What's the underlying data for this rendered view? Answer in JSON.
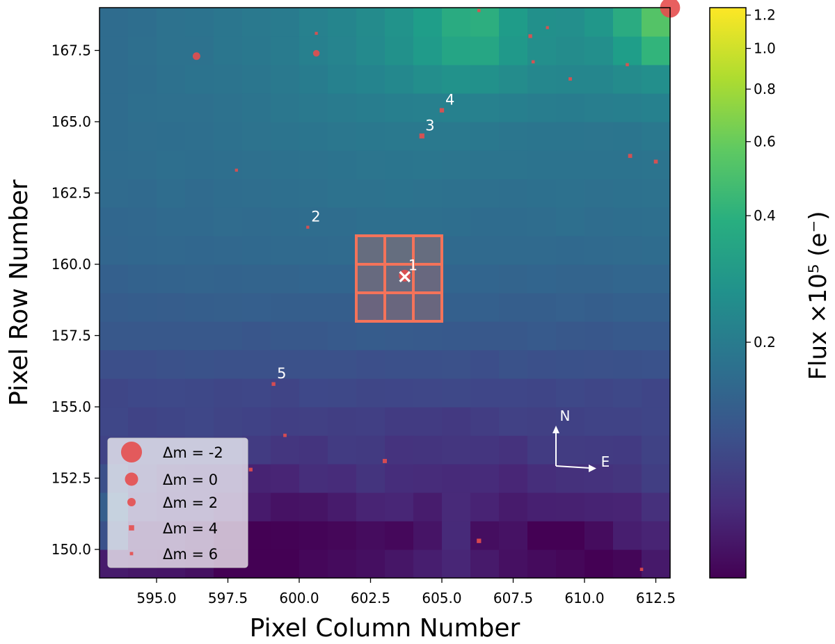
{
  "chart_data": {
    "type": "heatmap",
    "xlabel": "Pixel Column Number",
    "ylabel": "Pixel Row Number",
    "xlim": [
      593.0,
      613.0
    ],
    "ylim": [
      149.0,
      169.0
    ],
    "xticks": [
      595.0,
      597.5,
      600.0,
      602.5,
      605.0,
      607.5,
      610.0,
      612.5
    ],
    "xtick_labels": [
      "595.0",
      "597.5",
      "600.0",
      "602.5",
      "605.0",
      "607.5",
      "610.0",
      "612.5"
    ],
    "yticks": [
      150.0,
      152.5,
      155.0,
      157.5,
      160.0,
      162.5,
      165.0,
      167.5
    ],
    "ytick_labels": [
      "150.0",
      "152.5",
      "155.0",
      "157.5",
      "160.0",
      "162.5",
      "165.0",
      "167.5"
    ],
    "colormap": "viridis",
    "colorbar": {
      "label": "Flux ×10⁵ (e⁻)",
      "scale": "log",
      "range": [
        0.055,
        1.25
      ],
      "ticks": [
        0.2,
        0.4,
        0.6,
        0.8,
        1.0,
        1.2
      ],
      "tick_labels": [
        "0.2",
        "0.4",
        "0.6",
        "0.8",
        "1.0",
        "1.2"
      ]
    },
    "pixel_values": [
      [
        0.0693,
        0.0667,
        0.066,
        0.0626,
        0.0536,
        0.045,
        0.0477,
        0.0581,
        0.0602,
        0.0623,
        0.0661,
        0.0714,
        0.0765,
        0.0688,
        0.0628,
        0.0602,
        0.0578,
        0.0546,
        0.0574,
        0.0678
      ],
      [
        0.1211,
        0.0695,
        0.0699,
        0.0648,
        0.0566,
        0.0535,
        0.0553,
        0.0566,
        0.0579,
        0.0605,
        0.0587,
        0.0652,
        0.0797,
        0.0617,
        0.0639,
        0.0469,
        0.0505,
        0.0605,
        0.0711,
        0.075
      ],
      [
        0.1414,
        0.0887,
        0.0826,
        0.0814,
        0.0746,
        0.069,
        0.064,
        0.0651,
        0.0693,
        0.0748,
        0.0764,
        0.07,
        0.0791,
        0.0746,
        0.0693,
        0.0724,
        0.0728,
        0.0745,
        0.0752,
        0.0847
      ],
      [
        0.1191,
        0.0949,
        0.0842,
        0.0815,
        0.0813,
        0.0742,
        0.0757,
        0.0825,
        0.0809,
        0.0882,
        0.0824,
        0.0815,
        0.0797,
        0.0804,
        0.0763,
        0.0828,
        0.0852,
        0.0862,
        0.0888,
        0.0978
      ],
      [
        0.1029,
        0.1039,
        0.1005,
        0.1036,
        0.0997,
        0.0949,
        0.0899,
        0.0886,
        0.0955,
        0.0944,
        0.0874,
        0.0882,
        0.0899,
        0.0894,
        0.0866,
        0.0954,
        0.096,
        0.0953,
        0.0945,
        0.102
      ],
      [
        0.1073,
        0.1036,
        0.1058,
        0.1073,
        0.104,
        0.1027,
        0.099,
        0.1003,
        0.0979,
        0.0992,
        0.0953,
        0.0949,
        0.093,
        0.0974,
        0.1009,
        0.1004,
        0.1016,
        0.1034,
        0.1037,
        0.106
      ],
      [
        0.1067,
        0.1093,
        0.11,
        0.1085,
        0.1064,
        0.108,
        0.1043,
        0.1092,
        0.1084,
        0.1066,
        0.1071,
        0.1076,
        0.1089,
        0.1071,
        0.1068,
        0.1056,
        0.1089,
        0.1067,
        0.1085,
        0.1055
      ],
      [
        0.1176,
        0.1173,
        0.1207,
        0.1215,
        0.1207,
        0.1206,
        0.1208,
        0.1205,
        0.1204,
        0.1175,
        0.1185,
        0.1195,
        0.1205,
        0.117,
        0.1214,
        0.1197,
        0.1209,
        0.1203,
        0.1211,
        0.1222
      ],
      [
        0.1304,
        0.1298,
        0.1305,
        0.1297,
        0.1305,
        0.1273,
        0.1298,
        0.1303,
        0.1327,
        0.1355,
        0.1345,
        0.1326,
        0.1313,
        0.1305,
        0.1301,
        0.1327,
        0.1297,
        0.1284,
        0.1313,
        0.1319
      ],
      [
        0.1359,
        0.1382,
        0.1378,
        0.1392,
        0.1402,
        0.1407,
        0.1398,
        0.1393,
        0.1398,
        0.1414,
        0.1442,
        0.1446,
        0.1431,
        0.1431,
        0.1389,
        0.1388,
        0.1417,
        0.1399,
        0.1428,
        0.1424
      ],
      [
        0.1425,
        0.1459,
        0.1475,
        0.1484,
        0.147,
        0.1492,
        0.1489,
        0.1508,
        0.1514,
        0.1538,
        0.1545,
        0.1512,
        0.1514,
        0.1511,
        0.1494,
        0.1506,
        0.1483,
        0.1495,
        0.1515,
        0.1531
      ],
      [
        0.1521,
        0.1548,
        0.1561,
        0.1549,
        0.1567,
        0.1588,
        0.1594,
        0.161,
        0.1623,
        0.1628,
        0.1634,
        0.1614,
        0.1599,
        0.1592,
        0.1601,
        0.1607,
        0.1589,
        0.1599,
        0.1624,
        0.1635
      ],
      [
        0.1543,
        0.1559,
        0.1609,
        0.1595,
        0.1633,
        0.1624,
        0.1642,
        0.1672,
        0.1676,
        0.1708,
        0.1706,
        0.1707,
        0.1697,
        0.165,
        0.1639,
        0.1657,
        0.1709,
        0.1666,
        0.1699,
        0.1714
      ],
      [
        0.1622,
        0.1599,
        0.1655,
        0.1631,
        0.1663,
        0.1679,
        0.17,
        0.1725,
        0.1776,
        0.1777,
        0.1806,
        0.1773,
        0.1748,
        0.1723,
        0.1715,
        0.1743,
        0.1749,
        0.1736,
        0.1746,
        0.1769
      ],
      [
        0.1641,
        0.1661,
        0.1701,
        0.1693,
        0.1718,
        0.1728,
        0.1751,
        0.1789,
        0.1806,
        0.1841,
        0.1857,
        0.1871,
        0.1844,
        0.182,
        0.1818,
        0.1815,
        0.1803,
        0.1802,
        0.1815,
        0.1824
      ],
      [
        0.1648,
        0.1683,
        0.1693,
        0.1704,
        0.1754,
        0.1795,
        0.1817,
        0.1864,
        0.1907,
        0.1931,
        0.1948,
        0.1964,
        0.196,
        0.1918,
        0.1881,
        0.1865,
        0.1855,
        0.1844,
        0.1864,
        0.1925
      ],
      [
        0.1653,
        0.1705,
        0.1728,
        0.1734,
        0.1786,
        0.1829,
        0.1896,
        0.1958,
        0.2005,
        0.2068,
        0.2124,
        0.216,
        0.2188,
        0.2165,
        0.2117,
        0.2057,
        0.2044,
        0.2095,
        0.2124,
        0.2175
      ],
      [
        0.1649,
        0.1697,
        0.1761,
        0.18,
        0.1836,
        0.1889,
        0.1963,
        0.2048,
        0.2177,
        0.2262,
        0.2386,
        0.2543,
        0.2678,
        0.2671,
        0.2488,
        0.2355,
        0.2305,
        0.2326,
        0.2479,
        0.2576
      ],
      [
        0.1645,
        0.1703,
        0.1791,
        0.1792,
        0.1868,
        0.193,
        0.2019,
        0.2152,
        0.2253,
        0.2422,
        0.2665,
        0.2994,
        0.3431,
        0.3484,
        0.2914,
        0.2577,
        0.248,
        0.2588,
        0.3117,
        0.4221
      ],
      [
        0.1645,
        0.1699,
        0.1784,
        0.1802,
        0.188,
        0.1945,
        0.2005,
        0.2169,
        0.2285,
        0.2468,
        0.2715,
        0.3109,
        0.3737,
        0.3882,
        0.306,
        0.2631,
        0.2577,
        0.2851,
        0.3746,
        0.5317
      ]
    ],
    "aperture": {
      "columns": [
        602,
        605
      ],
      "rows": [
        158,
        161
      ],
      "color": "#f4735a"
    },
    "target": {
      "label": "1",
      "x": 603.7,
      "y": 159.6,
      "marker": "×"
    },
    "sources": [
      {
        "label": "1",
        "x": 603.7,
        "y": 159.6,
        "dm": 0.5
      },
      {
        "label": "2",
        "x": 600.3,
        "y": 161.3,
        "dm": 6.5
      },
      {
        "label": "3",
        "x": 604.3,
        "y": 164.5,
        "dm": 4.2
      },
      {
        "label": "4",
        "x": 605.0,
        "y": 165.4,
        "dm": 4.8
      },
      {
        "label": "5",
        "x": 599.1,
        "y": 155.8,
        "dm": 5.5
      },
      {
        "label": "",
        "x": 596.4,
        "y": 167.3,
        "dm": 2.4
      },
      {
        "label": "",
        "x": 600.6,
        "y": 167.4,
        "dm": 3.0
      },
      {
        "label": "",
        "x": 600.6,
        "y": 168.1,
        "dm": 6.5
      },
      {
        "label": "",
        "x": 606.3,
        "y": 168.9,
        "dm": 6.2
      },
      {
        "label": "",
        "x": 608.1,
        "y": 168.0,
        "dm": 5.5
      },
      {
        "label": "",
        "x": 608.7,
        "y": 168.3,
        "dm": 6.5
      },
      {
        "label": "",
        "x": 608.2,
        "y": 167.1,
        "dm": 6.2
      },
      {
        "label": "",
        "x": 609.5,
        "y": 166.5,
        "dm": 6.0
      },
      {
        "label": "",
        "x": 611.5,
        "y": 167.0,
        "dm": 6.2
      },
      {
        "label": "",
        "x": 611.6,
        "y": 163.8,
        "dm": 5.2
      },
      {
        "label": "",
        "x": 612.5,
        "y": 163.6,
        "dm": 5.3
      },
      {
        "label": "",
        "x": 597.8,
        "y": 163.3,
        "dm": 6.5
      },
      {
        "label": "",
        "x": 599.5,
        "y": 154.0,
        "dm": 6.0
      },
      {
        "label": "",
        "x": 598.3,
        "y": 152.8,
        "dm": 5.6
      },
      {
        "label": "",
        "x": 603.0,
        "y": 153.1,
        "dm": 5.0
      },
      {
        "label": "",
        "x": 606.3,
        "y": 150.3,
        "dm": 4.8
      },
      {
        "label": "",
        "x": 612.0,
        "y": 149.3,
        "dm": 6.2
      },
      {
        "label": "",
        "x": 613.0,
        "y": 169.0,
        "dm": -1.8
      }
    ],
    "legend": {
      "location": "lower-left",
      "entries": [
        {
          "label": "Δm =  -2",
          "dm": -2
        },
        {
          "label": "Δm =  0",
          "dm": 0
        },
        {
          "label": "Δm =  2",
          "dm": 2
        },
        {
          "label": "Δm =  4",
          "dm": 4
        },
        {
          "label": "Δm =  6",
          "dm": 6
        }
      ]
    },
    "compass": {
      "north": "N",
      "east": "E"
    },
    "marker_color": "#e54e4e"
  }
}
